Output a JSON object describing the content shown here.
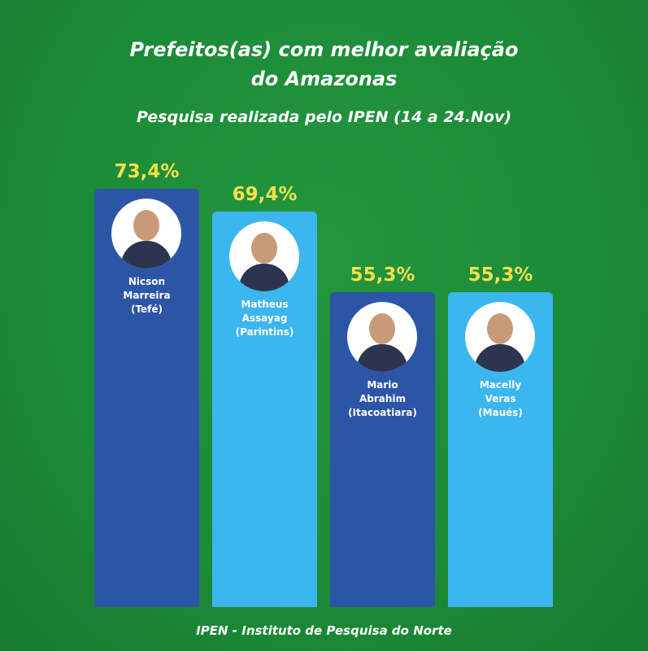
{
  "chart_data": {
    "type": "bar",
    "title": [
      "Prefeitos(as) com melhor avaliação",
      "do Amazonas"
    ],
    "subtitle": "Pesquisa realizada pelo IPEN (14 a 24.Nov)",
    "categories": [
      "Nicson Marreira",
      "Matheus Assayag",
      "Mario Abrahim",
      "Macelly Veras"
    ],
    "cities": [
      "(Tefé)",
      "(Parintins)",
      "(Itacoatiara)",
      "(Maués)"
    ],
    "values": [
      73.4,
      69.4,
      55.3,
      55.3
    ],
    "value_labels": [
      "73,4%",
      "69,4%",
      "55,3%",
      "55,3%"
    ],
    "colors": [
      "#2d55a6",
      "#3bb6ee",
      "#2d55a6",
      "#3bb6ee"
    ],
    "source": "IPEN - Instituto de Pesquisa do Norte"
  }
}
